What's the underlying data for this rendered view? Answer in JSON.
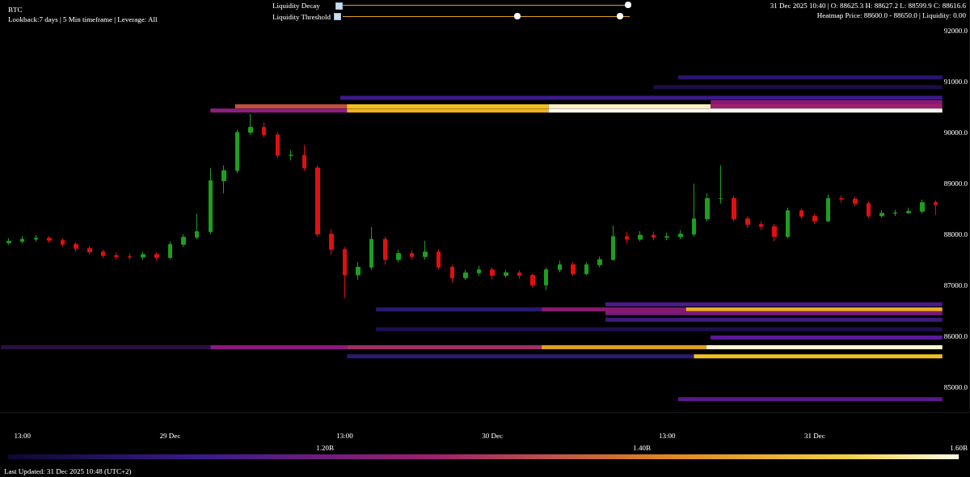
{
  "chart_data": {
    "type": "candlestick",
    "title": "BTC",
    "subtitle": "Lookback:7 days | 5 Min timeframe | Leverage: All",
    "annotations": [
      "31 Dec 2025 10:40 | O: 88625.3 H: 88627.2 L: 88599.9 C: 88616.6",
      "Heatmap Price: 88600.0 - 88650.0 | Liquidity: 0.00",
      "Liquidity Decay",
      "Liquidity Threshold",
      "Last Updated: 31 Dec 2025 10:48 (UTC+2)"
    ],
    "xlim": [
      "2025-12-28T11:20",
      "2025-12-31T11:30"
    ],
    "xticks": [
      {
        "value": "2025-12-28T13:00",
        "label": "13:00"
      },
      {
        "value": "2025-12-29T00:00",
        "label": "29 Dec"
      },
      {
        "value": "2025-12-29T13:00",
        "label": "13:00"
      },
      {
        "value": "2025-12-30T00:00",
        "label": "30 Dec"
      },
      {
        "value": "2025-12-30T13:00",
        "label": "13:00"
      },
      {
        "value": "2025-12-31T00:00",
        "label": "31 Dec"
      }
    ],
    "ylim": [
      84500,
      92600
    ],
    "yticks": [
      {
        "value": 85000,
        "label": "85000.0"
      },
      {
        "value": 86000,
        "label": "86000.0"
      },
      {
        "value": 87000,
        "label": "87000.0"
      },
      {
        "value": 88000,
        "label": "88000.0"
      },
      {
        "value": 89000,
        "label": "89000.0"
      },
      {
        "value": 90000,
        "label": "90000.0"
      },
      {
        "value": 91000,
        "label": "91000.0"
      },
      {
        "value": 92000,
        "label": "92000.0"
      }
    ],
    "clim": [
      1.0,
      1.6
    ],
    "cticks": [
      {
        "value": 1.2,
        "label": "1.20B"
      },
      {
        "value": 1.4,
        "label": "1.40B"
      },
      {
        "value": 1.6,
        "label": "1.60B"
      }
    ],
    "marker": "none",
    "series": [
      {
        "type": "candlestick",
        "x": [
          "2025-12-28T12:00",
          "2025-12-28T13:00",
          "2025-12-28T14:00",
          "2025-12-28T15:00",
          "2025-12-28T16:00",
          "2025-12-28T17:00",
          "2025-12-28T18:00",
          "2025-12-28T19:00",
          "2025-12-28T20:00",
          "2025-12-28T21:00",
          "2025-12-28T22:00",
          "2025-12-28T23:00",
          "2025-12-29T00:00",
          "2025-12-29T01:00",
          "2025-12-29T02:00",
          "2025-12-29T03:00",
          "2025-12-29T04:00",
          "2025-12-29T05:00",
          "2025-12-29T06:00",
          "2025-12-29T07:00",
          "2025-12-29T08:00",
          "2025-12-29T09:00",
          "2025-12-29T10:00",
          "2025-12-29T11:00",
          "2025-12-29T12:00",
          "2025-12-29T13:00",
          "2025-12-29T14:00",
          "2025-12-29T15:00",
          "2025-12-29T16:00",
          "2025-12-29T17:00",
          "2025-12-29T18:00",
          "2025-12-29T19:00",
          "2025-12-29T20:00",
          "2025-12-29T21:00",
          "2025-12-29T22:00",
          "2025-12-29T23:00",
          "2025-12-30T00:00",
          "2025-12-30T01:00",
          "2025-12-30T02:00",
          "2025-12-30T03:00",
          "2025-12-30T04:00",
          "2025-12-30T05:00",
          "2025-12-30T06:00",
          "2025-12-30T07:00",
          "2025-12-30T08:00",
          "2025-12-30T09:00",
          "2025-12-30T10:00",
          "2025-12-30T11:00",
          "2025-12-30T12:00",
          "2025-12-30T13:00",
          "2025-12-30T14:00",
          "2025-12-30T15:00",
          "2025-12-30T16:00",
          "2025-12-30T17:00",
          "2025-12-30T18:00",
          "2025-12-30T19:00",
          "2025-12-30T20:00",
          "2025-12-30T21:00",
          "2025-12-30T22:00",
          "2025-12-30T23:00",
          "2025-12-31T00:00",
          "2025-12-31T01:00",
          "2025-12-31T02:00",
          "2025-12-31T03:00",
          "2025-12-31T04:00",
          "2025-12-31T05:00",
          "2025-12-31T06:00",
          "2025-12-31T07:00",
          "2025-12-31T08:00",
          "2025-12-31T09:00"
        ],
        "ohlc": [
          [
            87830,
            87920,
            87790,
            87860
          ],
          [
            87860,
            87960,
            87820,
            87900
          ],
          [
            87900,
            87980,
            87850,
            87920
          ],
          [
            87920,
            87960,
            87830,
            87880
          ],
          [
            87880,
            87920,
            87760,
            87800
          ],
          [
            87800,
            87840,
            87660,
            87720
          ],
          [
            87720,
            87760,
            87600,
            87650
          ],
          [
            87650,
            87700,
            87530,
            87580
          ],
          [
            87580,
            87640,
            87500,
            87560
          ],
          [
            87560,
            87620,
            87500,
            87550
          ],
          [
            87550,
            87650,
            87500,
            87600
          ],
          [
            87600,
            87640,
            87480,
            87540
          ],
          [
            87540,
            87860,
            87500,
            87800
          ],
          [
            87800,
            88000,
            87750,
            87940
          ],
          [
            87940,
            88400,
            87900,
            88050
          ],
          [
            88050,
            89300,
            88000,
            89050
          ],
          [
            89050,
            89350,
            88800,
            89250
          ],
          [
            89250,
            90050,
            89200,
            90000
          ],
          [
            90000,
            90360,
            89950,
            90100
          ],
          [
            90100,
            90200,
            89900,
            89950
          ],
          [
            89950,
            90000,
            89500,
            89550
          ],
          [
            89550,
            89650,
            89450,
            89550
          ],
          [
            89550,
            89750,
            89250,
            89300
          ],
          [
            89300,
            89350,
            87950,
            88000
          ],
          [
            88000,
            88100,
            87600,
            87700
          ],
          [
            87700,
            87750,
            86750,
            87200
          ],
          [
            87200,
            87450,
            87100,
            87350
          ],
          [
            87350,
            88140,
            87300,
            87900
          ],
          [
            87900,
            87950,
            87400,
            87500
          ],
          [
            87500,
            87700,
            87450,
            87620
          ],
          [
            87620,
            87680,
            87500,
            87560
          ],
          [
            87560,
            87870,
            87500,
            87650
          ],
          [
            87650,
            87700,
            87300,
            87350
          ],
          [
            87350,
            87400,
            87050,
            87140
          ],
          [
            87140,
            87300,
            87100,
            87240
          ],
          [
            87240,
            87380,
            87180,
            87300
          ],
          [
            87300,
            87350,
            87120,
            87190
          ],
          [
            87190,
            87300,
            87150,
            87240
          ],
          [
            87240,
            87290,
            87130,
            87190
          ],
          [
            87190,
            87230,
            86950,
            87000
          ],
          [
            87000,
            87350,
            86900,
            87300
          ],
          [
            87300,
            87480,
            87250,
            87400
          ],
          [
            87400,
            87450,
            87180,
            87220
          ],
          [
            87220,
            87450,
            87200,
            87400
          ],
          [
            87400,
            87560,
            87350,
            87500
          ],
          [
            87500,
            88170,
            87480,
            87950
          ],
          [
            87950,
            88050,
            87820,
            87900
          ],
          [
            87900,
            88060,
            87860,
            87980
          ],
          [
            87980,
            88050,
            87880,
            87940
          ],
          [
            87940,
            88030,
            87880,
            87950
          ],
          [
            87950,
            88080,
            87900,
            88000
          ],
          [
            88000,
            88990,
            87950,
            88300
          ],
          [
            88300,
            88800,
            88250,
            88700
          ],
          [
            88700,
            89350,
            88600,
            88700
          ],
          [
            88700,
            88750,
            88250,
            88300
          ],
          [
            88300,
            88350,
            88120,
            88190
          ],
          [
            88190,
            88250,
            88080,
            88150
          ],
          [
            88150,
            88200,
            87860,
            87950
          ],
          [
            87950,
            88520,
            87920,
            88460
          ],
          [
            88460,
            88500,
            88300,
            88350
          ],
          [
            88350,
            88400,
            88200,
            88260
          ],
          [
            88260,
            88780,
            88230,
            88700
          ],
          [
            88700,
            88760,
            88620,
            88690
          ],
          [
            88690,
            88740,
            88550,
            88600
          ],
          [
            88600,
            88640,
            88320,
            88360
          ],
          [
            88360,
            88470,
            88330,
            88410
          ],
          [
            88410,
            88480,
            88360,
            88420
          ],
          [
            88420,
            88520,
            88400,
            88450
          ],
          [
            88450,
            88680,
            88400,
            88620
          ],
          [
            88620,
            88660,
            88380,
            88580
          ]
        ]
      },
      {
        "type": "line",
        "color": "#2c1470",
        "x": [
          "2025-12-30T13:50",
          "2025-12-31T09:30"
        ],
        "values": [
          91080,
          91080
        ]
      },
      {
        "type": "line",
        "color": "#1c0c48",
        "x": [
          "2025-12-30T12:00",
          "2025-12-31T09:30"
        ],
        "values": [
          90890,
          90890
        ]
      },
      {
        "type": "line",
        "color": "#3a1a8a",
        "x": [
          "2025-12-29T12:40",
          "2025-12-31T09:30"
        ],
        "values": [
          90680,
          90680
        ]
      },
      {
        "type": "line",
        "color": "#8a1a74",
        "x": [
          "2025-12-30T16:15",
          "2025-12-31T09:30"
        ],
        "values": [
          90590,
          90590
        ]
      },
      {
        "type": "line",
        "color": "#c0503a",
        "x": [
          "2025-12-29T04:50",
          "2025-12-29T13:10"
        ],
        "values": [
          90510,
          90510
        ]
      },
      {
        "type": "line",
        "color": "#f0c020",
        "x": [
          "2025-12-29T13:10",
          "2025-12-30T04:10"
        ],
        "values": [
          90510,
          90510
        ]
      },
      {
        "type": "line",
        "color": "#fff0c0",
        "x": [
          "2025-12-30T04:10",
          "2025-12-30T16:15"
        ],
        "values": [
          90510,
          90510
        ]
      },
      {
        "type": "line",
        "color": "#a02070",
        "x": [
          "2025-12-30T16:15",
          "2025-12-31T09:30"
        ],
        "values": [
          90510,
          90510
        ]
      },
      {
        "type": "line",
        "color": "#8a2080",
        "x": [
          "2025-12-29T03:00",
          "2025-12-29T13:10"
        ],
        "values": [
          90430,
          90430
        ]
      },
      {
        "type": "line",
        "color": "#f0b020",
        "x": [
          "2025-12-29T13:10",
          "2025-12-30T04:10"
        ],
        "values": [
          90430,
          90430
        ]
      },
      {
        "type": "line",
        "color": "#fffaf0",
        "x": [
          "2025-12-30T04:10",
          "2025-12-31T09:30"
        ],
        "values": [
          90430,
          90430
        ]
      },
      {
        "type": "line",
        "color": "#4a1a8a",
        "x": [
          "2025-12-30T08:25",
          "2025-12-31T09:30"
        ],
        "values": [
          86620,
          86620
        ]
      },
      {
        "type": "line",
        "color": "#2a1a70",
        "x": [
          "2025-12-29T15:20",
          "2025-12-30T03:40"
        ],
        "values": [
          86520,
          86520
        ]
      },
      {
        "type": "line",
        "color": "#8a1a70",
        "x": [
          "2025-12-30T03:40",
          "2025-12-30T14:25"
        ],
        "values": [
          86520,
          86520
        ]
      },
      {
        "type": "line",
        "color": "#f0b020",
        "x": [
          "2025-12-30T14:25",
          "2025-12-31T09:30"
        ],
        "values": [
          86520,
          86520
        ]
      },
      {
        "type": "line",
        "color": "#7a1a7a",
        "x": [
          "2025-12-30T08:25",
          "2025-12-31T09:30"
        ],
        "values": [
          86450,
          86450
        ]
      },
      {
        "type": "line",
        "color": "#3a1a7a",
        "x": [
          "2025-12-30T08:25",
          "2025-12-31T09:30"
        ],
        "values": [
          86320,
          86320
        ]
      },
      {
        "type": "line",
        "color": "#1e0e50",
        "x": [
          "2025-12-29T15:20",
          "2025-12-31T09:30"
        ],
        "values": [
          86130,
          86130
        ]
      },
      {
        "type": "line",
        "color": "#5a1a9a",
        "x": [
          "2025-12-30T16:15",
          "2025-12-31T09:30"
        ],
        "values": [
          85970,
          85970
        ]
      },
      {
        "type": "line",
        "color": "#2a1040",
        "x": [
          "2025-12-28T11:25",
          "2025-12-29T03:00"
        ],
        "values": [
          85780,
          85780
        ]
      },
      {
        "type": "line",
        "color": "#8a1a80",
        "x": [
          "2025-12-29T03:00",
          "2025-12-29T13:10"
        ],
        "values": [
          85780,
          85780
        ]
      },
      {
        "type": "line",
        "color": "#a03060",
        "x": [
          "2025-12-29T13:10",
          "2025-12-30T03:40"
        ],
        "values": [
          85780,
          85780
        ]
      },
      {
        "type": "line",
        "color": "#e0a020",
        "x": [
          "2025-12-30T03:40",
          "2025-12-30T15:55"
        ],
        "values": [
          85780,
          85780
        ]
      },
      {
        "type": "line",
        "color": "#fff4d0",
        "x": [
          "2025-12-30T15:55",
          "2025-12-31T09:30"
        ],
        "values": [
          85780,
          85780
        ]
      },
      {
        "type": "line",
        "color": "#2a1a70",
        "x": [
          "2025-12-29T13:10",
          "2025-12-30T15:00"
        ],
        "values": [
          85600,
          85600
        ]
      },
      {
        "type": "line",
        "color": "#f0c020",
        "x": [
          "2025-12-30T15:00",
          "2025-12-31T09:30"
        ],
        "values": [
          85600,
          85600
        ]
      },
      {
        "type": "line",
        "color": "#5a1a8a",
        "x": [
          "2025-12-30T13:50",
          "2025-12-31T09:30"
        ],
        "values": [
          84760,
          84760
        ]
      }
    ]
  }
}
